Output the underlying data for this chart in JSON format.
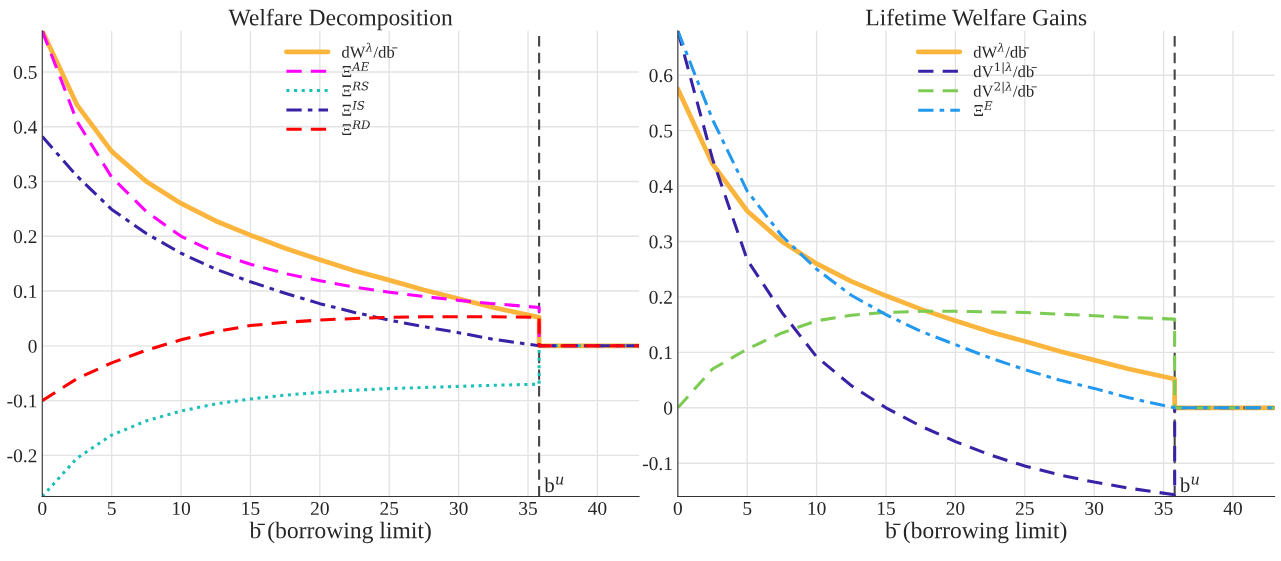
{
  "chart_data": [
    {
      "type": "line",
      "title": "Welfare Decomposition",
      "xlabel": "b̄ (borrowing limit)",
      "x": [
        0,
        2.5,
        5,
        7.5,
        10,
        12.5,
        15,
        17.5,
        20,
        22.5,
        25,
        27.5,
        30,
        32.5,
        35.8,
        35.8,
        43
      ],
      "series": [
        {
          "name": "dW$^{λ}$/db̄",
          "color": "#fbb53c",
          "line_style": "solid",
          "values": [
            0.575,
            0.44,
            0.355,
            0.3,
            0.26,
            0.228,
            0.202,
            0.178,
            0.157,
            0.137,
            0.12,
            0.102,
            0.086,
            0.07,
            0.052,
            0,
            0
          ]
        },
        {
          "name": "Ξ$^{AE}$",
          "color": "#ff00ff",
          "line_style": "dashed",
          "values": [
            0.575,
            0.41,
            0.308,
            0.245,
            0.2,
            0.17,
            0.149,
            0.132,
            0.119,
            0.107,
            0.098,
            0.09,
            0.083,
            0.077,
            0.07,
            0,
            0
          ]
        },
        {
          "name": "Ξ$^{RS}$",
          "color": "#1cc0b8",
          "line_style": "dotted",
          "values": [
            -0.275,
            -0.205,
            -0.163,
            -0.137,
            -0.119,
            -0.106,
            -0.097,
            -0.09,
            -0.085,
            -0.081,
            -0.078,
            -0.076,
            -0.074,
            -0.072,
            -0.07,
            0,
            0
          ]
        },
        {
          "name": "Ξ$^{IS}$",
          "color": "#3a22a6",
          "line_style": "dashdot",
          "values": [
            0.382,
            0.31,
            0.249,
            0.205,
            0.169,
            0.14,
            0.117,
            0.096,
            0.077,
            0.061,
            0.047,
            0.035,
            0.024,
            0.012,
            0,
            0,
            0
          ]
        },
        {
          "name": "Ξ$^{RD}$",
          "color": "#ff0000",
          "line_style": "dashed",
          "values": [
            -0.1,
            -0.06,
            -0.031,
            -0.008,
            0.011,
            0.026,
            0.037,
            0.043,
            0.047,
            0.05,
            0.052,
            0.053,
            0.053,
            0.053,
            0.052,
            0,
            0
          ]
        }
      ],
      "xlim": [
        0,
        43
      ],
      "xticks": [
        0,
        5,
        10,
        15,
        20,
        25,
        30,
        35,
        40
      ],
      "ylim": [
        -0.275,
        0.575
      ],
      "yticks": [
        -0.2,
        -0.1,
        0,
        0.1,
        0.2,
        0.3,
        0.4,
        0.5
      ],
      "ref_lines": [
        {
          "axis": "x",
          "value": 35.8,
          "label": "b$^{u}$",
          "color": "#444444",
          "line_style": "dashed"
        }
      ],
      "grid": true,
      "legend": "top"
    },
    {
      "type": "line",
      "title": "Lifetime Welfare Gains",
      "xlabel": "b̄ (borrowing limit)",
      "x": [
        0,
        2.5,
        5,
        7.5,
        10,
        12.5,
        15,
        17.5,
        20,
        22.5,
        25,
        27.5,
        30,
        32.5,
        35.8,
        35.8,
        43
      ],
      "series": [
        {
          "name": "dW$^{λ}$/db̄",
          "color": "#fbb53c",
          "line_style": "solid",
          "values": [
            0.575,
            0.44,
            0.355,
            0.3,
            0.26,
            0.228,
            0.202,
            0.178,
            0.157,
            0.137,
            0.12,
            0.102,
            0.086,
            0.07,
            0.052,
            0,
            0
          ]
        },
        {
          "name": "dV$^{1|λ}$/db̄",
          "color": "#3a22a6",
          "line_style": "dashed",
          "values": [
            0.68,
            0.449,
            0.267,
            0.172,
            0.092,
            0.04,
            0.0,
            -0.033,
            -0.061,
            -0.085,
            -0.105,
            -0.121,
            -0.134,
            -0.145,
            -0.157,
            0,
            0
          ]
        },
        {
          "name": "dV$^{2|λ}$/db̄",
          "color": "#7ccb52",
          "line_style": "dashed",
          "values": [
            0,
            0.07,
            0.106,
            0.135,
            0.157,
            0.167,
            0.172,
            0.174,
            0.174,
            0.173,
            0.172,
            0.169,
            0.166,
            0.163,
            0.16,
            0,
            0
          ]
        },
        {
          "name": "Ξ$^{E}$",
          "color": "#2299ee",
          "line_style": "dashdot",
          "values": [
            0.68,
            0.52,
            0.391,
            0.31,
            0.25,
            0.203,
            0.168,
            0.138,
            0.114,
            0.09,
            0.069,
            0.05,
            0.035,
            0.018,
            0,
            0,
            0
          ]
        }
      ],
      "xlim": [
        0,
        43
      ],
      "xticks": [
        0,
        5,
        10,
        15,
        20,
        25,
        30,
        35,
        40
      ],
      "ylim": [
        -0.16,
        0.68
      ],
      "yticks": [
        -0.1,
        0,
        0.1,
        0.2,
        0.3,
        0.4,
        0.5,
        0.6
      ],
      "ref_lines": [
        {
          "axis": "x",
          "value": 35.8,
          "label": "b$^{u}$",
          "color": "#444444",
          "line_style": "dashed"
        }
      ],
      "grid": true,
      "legend": "top"
    }
  ]
}
